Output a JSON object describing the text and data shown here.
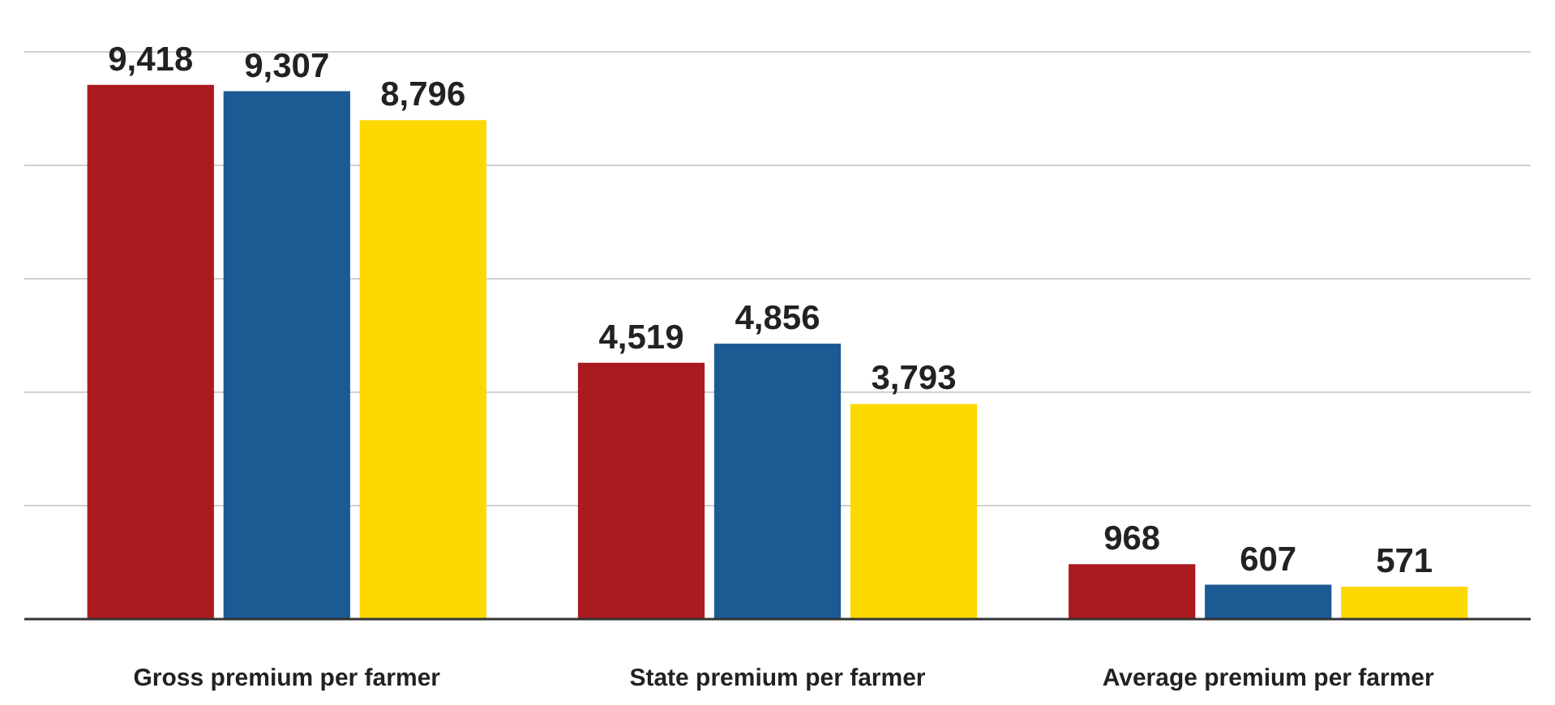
{
  "chart_data": {
    "type": "bar",
    "categories": [
      "Gross premium per farmer",
      "State premium per farmer",
      "Average premium per farmer"
    ],
    "series": [
      {
        "color": "#ab1a1f",
        "values": [
          9418,
          4519,
          968
        ],
        "value_labels": [
          "9,418",
          "4,519",
          "968"
        ]
      },
      {
        "color": "#1b5a93",
        "values": [
          9307,
          4856,
          607
        ],
        "value_labels": [
          "9,307",
          "4,856",
          "607"
        ]
      },
      {
        "color": "#fdd800",
        "values": [
          8796,
          3793,
          571
        ],
        "value_labels": [
          "8,796",
          "3,793",
          "571"
        ]
      }
    ],
    "ylim": [
      0,
      10000
    ],
    "yticks": [
      {
        "value": 0,
        "label": null
      },
      {
        "value": 2000,
        "label": null
      },
      {
        "value": 4000,
        "label": null
      },
      {
        "value": 6000,
        "label": null
      },
      {
        "value": 8000,
        "label": null
      },
      {
        "value": 10000,
        "label": null
      }
    ],
    "tick_labels": "x",
    "grid": "y"
  }
}
